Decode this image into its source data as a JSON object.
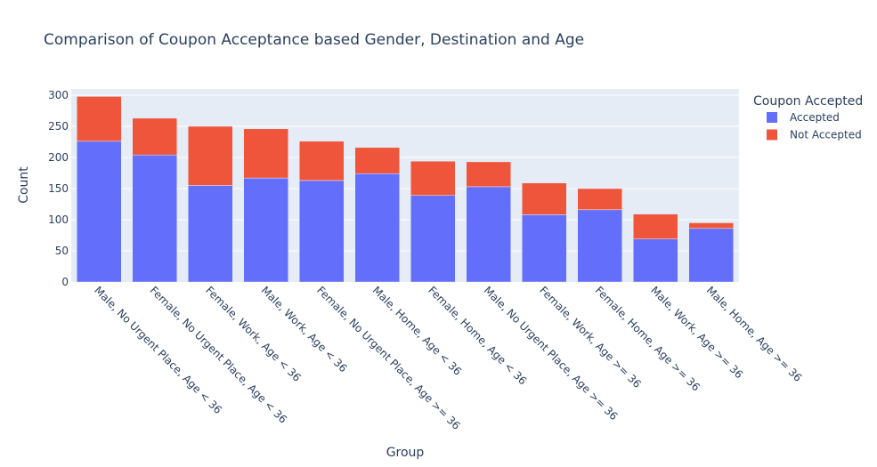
{
  "chart_data": {
    "type": "bar",
    "barmode": "stack",
    "title": "Comparison of Coupon Acceptance based Gender, Destination and Age",
    "xlabel": "Group",
    "ylabel": "Count",
    "ylim": [
      0,
      310
    ],
    "yticks": [
      0,
      50,
      100,
      150,
      200,
      250,
      300
    ],
    "grid": true,
    "legend": {
      "title": "Coupon Accepted",
      "position": "top-right"
    },
    "categories": [
      "Male, No Urgent Place, Age < 36",
      "Female, No Urgent Place, Age < 36",
      "Female, Work, Age < 36",
      "Male, Work, Age < 36",
      "Female, No Urgent Place, Age >= 36",
      "Male, Home, Age < 36",
      "Female, Home, Age < 36",
      "Male, No Urgent Place, Age >= 36",
      "Female, Work, Age >= 36",
      "Female, Home, Age >= 36",
      "Male, Work, Age >= 36",
      "Male, Home, Age >= 36"
    ],
    "series": [
      {
        "name": "Accepted",
        "color": "#636efa",
        "values": [
          226,
          204,
          155,
          167,
          163,
          174,
          139,
          153,
          108,
          116,
          69,
          86
        ]
      },
      {
        "name": "Not Accepted",
        "color": "#ef553b",
        "values": [
          72,
          59,
          95,
          79,
          63,
          42,
          55,
          40,
          51,
          34,
          40,
          9
        ]
      }
    ],
    "colors": {
      "plot_bg": "#e5ecf6",
      "grid": "#ffffff",
      "text": "#2a3f5f"
    }
  }
}
